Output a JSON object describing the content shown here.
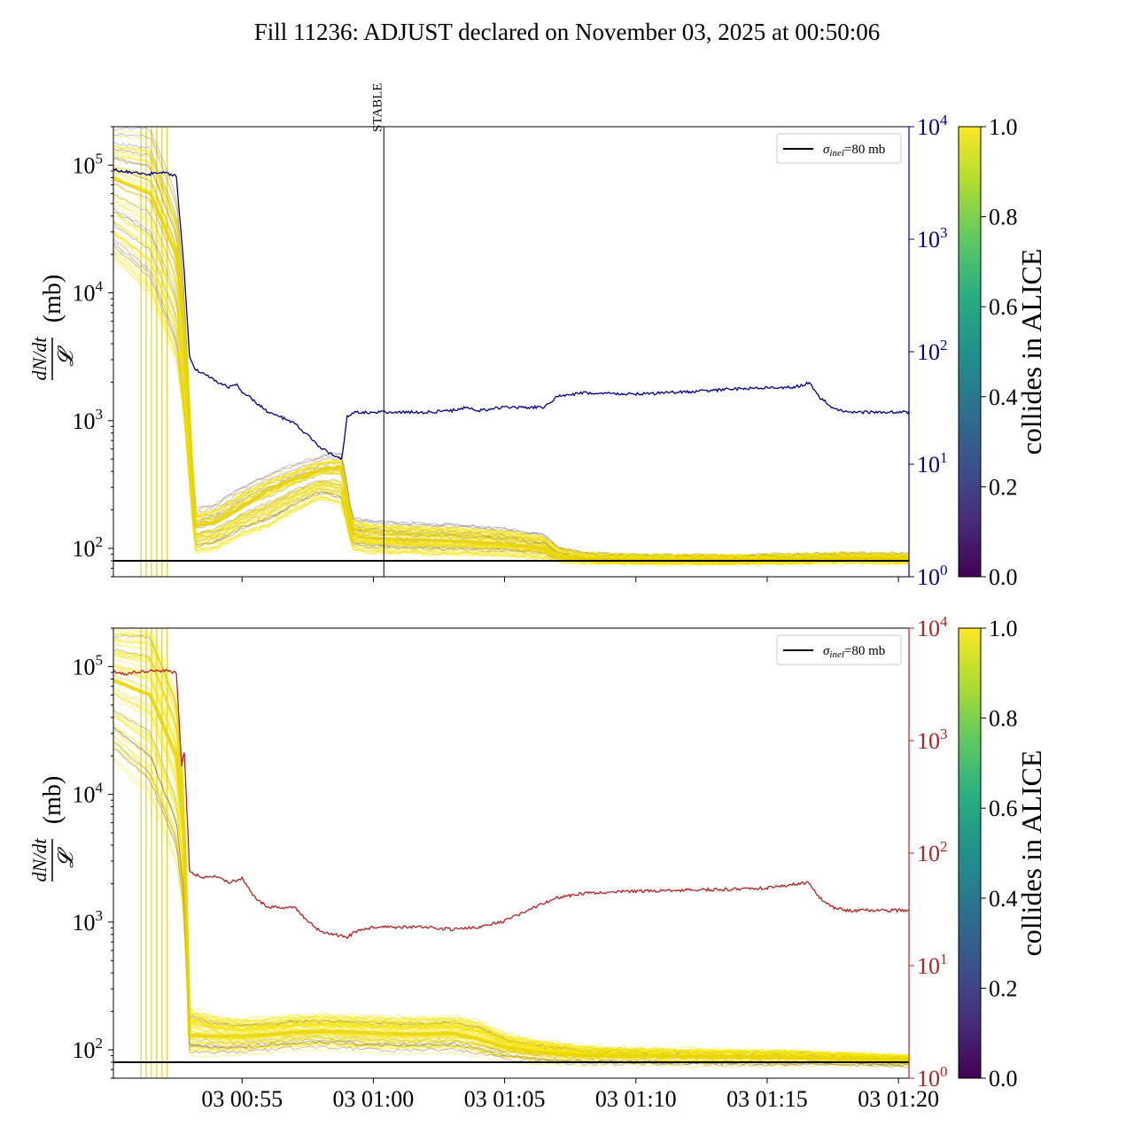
{
  "title": "Fill 11236: ADJUST declared on November 03, 2025 at 00:50:06",
  "colorbar": {
    "label": "collides in ALICE",
    "ticks": [
      "0.0",
      "0.2",
      "0.4",
      "0.6",
      "0.8",
      "1.0"
    ]
  },
  "colors": {
    "top_right_axis": "#00008b",
    "bottom_right_axis": "#b22222",
    "bunch_high": "#f5e400",
    "bunch_low": "#5b3b78",
    "reference_line": "#000000"
  },
  "chart_data": [
    {
      "type": "line",
      "panel": "top",
      "ylabel_left": "dN/dt / 𝓛 (mb)",
      "yscale_left": "log",
      "ylim_left": [
        60,
        200000
      ],
      "left_ticks": [
        {
          "base": "10",
          "exp": "2",
          "value": 100
        },
        {
          "base": "10",
          "exp": "3",
          "value": 1000
        },
        {
          "base": "10",
          "exp": "4",
          "value": 10000
        },
        {
          "base": "10",
          "exp": "5",
          "value": 100000
        }
      ],
      "yscale_right": "log",
      "ylim_right": [
        1,
        10000
      ],
      "right_ticks": [
        {
          "base": "10",
          "exp": "0",
          "value": 1
        },
        {
          "base": "10",
          "exp": "1",
          "value": 10
        },
        {
          "base": "10",
          "exp": "2",
          "value": 100
        },
        {
          "base": "10",
          "exp": "3",
          "value": 1000
        },
        {
          "base": "10",
          "exp": "4",
          "value": 10000
        }
      ],
      "xlim_min": [
        50.1,
        80.4
      ],
      "legend": {
        "label_sigma": "σ",
        "label_sub": "inel",
        "label_rest": "=80 mb",
        "placement": "top-right"
      },
      "annotation": {
        "text": "STABLE",
        "x_min": 60.4
      },
      "reference_line_value": 80,
      "right_series": {
        "x_min": [
          50.0,
          50.5,
          51.0,
          51.5,
          52.0,
          52.5,
          52.8,
          53.0,
          53.2,
          53.5,
          54.0,
          54.5,
          54.8,
          55.0,
          55.5,
          56.0,
          56.5,
          57.0,
          57.5,
          58.0,
          58.5,
          58.8,
          59.0,
          59.3,
          60.0,
          61.0,
          62.0,
          63.0,
          63.5,
          64.0,
          65.0,
          66.5,
          67.0,
          68.0,
          70.0,
          72.0,
          74.0,
          75.0,
          76.0,
          76.6,
          77.0,
          77.5,
          78.0,
          80.4
        ],
        "y": [
          4200,
          4000,
          3900,
          3800,
          3900,
          3600,
          500,
          90,
          70,
          65,
          55,
          48,
          52,
          44,
          36,
          29,
          26,
          23,
          18,
          14,
          12,
          11,
          27,
          29,
          29,
          29,
          29,
          30,
          32,
          30,
          32,
          32,
          40,
          43,
          42,
          44,
          47,
          48,
          48,
          53,
          39,
          32,
          29,
          29
        ]
      },
      "bunch_band": {
        "x_min": [
          50.0,
          51.5,
          52.5,
          52.8,
          53.2,
          54.0,
          55.0,
          56.0,
          57.0,
          58.0,
          58.8,
          59.2,
          60.0,
          61.0,
          63.0,
          65.0,
          66.5,
          67.0,
          68.0,
          70.0,
          72.0,
          74.0,
          76.0,
          78.0,
          80.4
        ],
        "high": [
          200000,
          200000,
          60000,
          10000,
          200,
          220,
          300,
          380,
          450,
          520,
          560,
          170,
          160,
          155,
          150,
          140,
          125,
          100,
          88,
          85,
          84,
          84,
          86,
          88,
          86
        ],
        "mid": [
          80000,
          60000,
          20000,
          5000,
          150,
          160,
          210,
          290,
          350,
          410,
          430,
          130,
          120,
          118,
          115,
          108,
          100,
          86,
          82,
          81,
          81,
          81,
          82,
          84,
          83
        ],
        "low": [
          20000,
          10000,
          3000,
          1000,
          95,
          100,
          130,
          150,
          200,
          250,
          220,
          100,
          95,
          94,
          92,
          90,
          86,
          81,
          80,
          80,
          80,
          80,
          80,
          81,
          81
        ]
      }
    },
    {
      "type": "line",
      "panel": "bottom",
      "ylabel_left": "dN/dt / 𝓛 (mb)",
      "yscale_left": "log",
      "ylim_left": [
        60,
        200000
      ],
      "left_ticks": [
        {
          "base": "10",
          "exp": "2",
          "value": 100
        },
        {
          "base": "10",
          "exp": "3",
          "value": 1000
        },
        {
          "base": "10",
          "exp": "4",
          "value": 10000
        },
        {
          "base": "10",
          "exp": "5",
          "value": 100000
        }
      ],
      "yscale_right": "log",
      "ylim_right": [
        1,
        10000
      ],
      "right_ticks": [
        {
          "base": "10",
          "exp": "0",
          "value": 1
        },
        {
          "base": "10",
          "exp": "1",
          "value": 10
        },
        {
          "base": "10",
          "exp": "2",
          "value": 100
        },
        {
          "base": "10",
          "exp": "3",
          "value": 1000
        },
        {
          "base": "10",
          "exp": "4",
          "value": 10000
        }
      ],
      "xlim_min": [
        50.1,
        80.4
      ],
      "x_ticks": [
        {
          "label": "03 00:55",
          "value": 55
        },
        {
          "label": "03 01:00",
          "value": 60
        },
        {
          "label": "03 01:05",
          "value": 65
        },
        {
          "label": "03 01:10",
          "value": 70
        },
        {
          "label": "03 01:15",
          "value": 75
        },
        {
          "label": "03 01:20",
          "value": 80
        }
      ],
      "legend": {
        "label_sigma": "σ",
        "label_sub": "inel",
        "label_rest": "=80 mb",
        "placement": "top-right"
      },
      "reference_line_value": 80,
      "right_series": {
        "x_min": [
          50.0,
          50.5,
          51.0,
          52.0,
          52.5,
          52.7,
          52.8,
          53.0,
          53.2,
          53.5,
          54.0,
          54.5,
          55.0,
          55.5,
          56.0,
          57.0,
          57.5,
          58.0,
          59.0,
          59.5,
          60.0,
          61.0,
          62.0,
          63.0,
          64.0,
          65.0,
          66.0,
          67.0,
          68.0,
          70.0,
          72.0,
          74.0,
          75.0,
          76.0,
          76.6,
          77.0,
          77.5,
          78.0,
          80.4
        ],
        "y": [
          4200,
          3900,
          4100,
          4200,
          4000,
          600,
          800,
          70,
          65,
          60,
          62,
          55,
          60,
          40,
          33,
          33,
          25,
          20,
          18,
          21,
          22,
          22,
          22,
          21,
          22,
          25,
          32,
          40,
          44,
          46,
          47,
          48,
          49,
          53,
          55,
          40,
          33,
          31,
          31
        ]
      },
      "bunch_band": {
        "x_min": [
          50.0,
          51.5,
          52.5,
          52.8,
          53.0,
          54.0,
          55.0,
          56.0,
          57.0,
          58.0,
          59.0,
          60.0,
          61.0,
          62.0,
          63.0,
          64.0,
          65.0,
          66.0,
          67.0,
          68.0,
          70.0,
          72.0,
          74.0,
          76.0,
          78.0,
          80.4
        ],
        "high": [
          200000,
          200000,
          60000,
          10000,
          200,
          175,
          165,
          170,
          178,
          180,
          178,
          175,
          172,
          172,
          175,
          160,
          128,
          115,
          108,
          102,
          98,
          96,
          95,
          94,
          90,
          86
        ],
        "mid": [
          80000,
          60000,
          20000,
          5000,
          130,
          128,
          128,
          132,
          137,
          140,
          138,
          135,
          133,
          133,
          135,
          122,
          105,
          97,
          93,
          90,
          89,
          88,
          88,
          87,
          85,
          83
        ],
        "low": [
          20000,
          10000,
          3000,
          1000,
          95,
          96,
          98,
          102,
          106,
          108,
          105,
          102,
          101,
          101,
          103,
          96,
          88,
          85,
          83,
          82,
          82,
          81,
          81,
          81,
          81,
          80
        ]
      }
    }
  ]
}
